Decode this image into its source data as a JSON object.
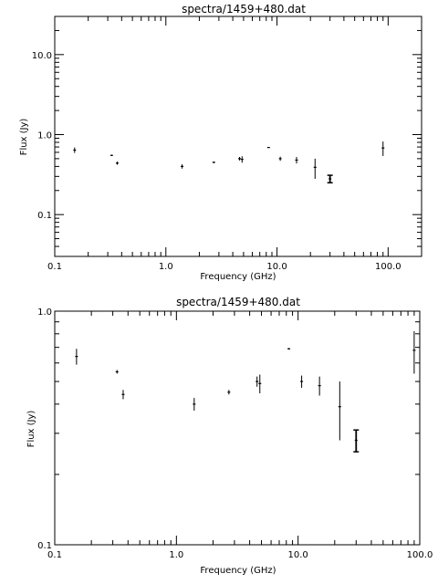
{
  "chart_data": [
    {
      "type": "scatter",
      "title": "spectra/1459+480.dat",
      "xlabel": "Frequency (GHz)",
      "ylabel": "Flux (Jy)",
      "x_scale": "log",
      "y_scale": "log",
      "xlim": [
        0.1,
        200
      ],
      "ylim": [
        0.03,
        30
      ],
      "x_ticks": [
        "0.1",
        "1.0",
        "10.0",
        "100.0"
      ],
      "y_ticks": [
        "0.1",
        "1.0",
        "10.0"
      ],
      "grid": false,
      "points": [
        {
          "x": 0.151,
          "y": 0.64,
          "err": 0.05
        },
        {
          "x": 0.325,
          "y": 0.55,
          "err": 0.01
        },
        {
          "x": 0.365,
          "y": 0.44,
          "err": 0.02
        },
        {
          "x": 1.4,
          "y": 0.4,
          "err": 0.025
        },
        {
          "x": 2.7,
          "y": 0.45,
          "err": 0.01
        },
        {
          "x": 4.6,
          "y": 0.5,
          "err": 0.025
        },
        {
          "x": 4.85,
          "y": 0.49,
          "err": 0.045
        },
        {
          "x": 8.4,
          "y": 0.69,
          "err": 0.005
        },
        {
          "x": 10.7,
          "y": 0.5,
          "err": 0.03
        },
        {
          "x": 15.0,
          "y": 0.48,
          "err": 0.045
        },
        {
          "x": 22.0,
          "y": 0.39,
          "err": 0.11
        },
        {
          "x": 30.0,
          "y": 0.28,
          "err": 0.03
        },
        {
          "x": 90.0,
          "y": 0.68,
          "err": 0.14
        }
      ]
    },
    {
      "type": "scatter",
      "title": "spectra/1459+480.dat",
      "xlabel": "Frequency (GHz)",
      "ylabel": "Flux (Jy)",
      "x_scale": "log",
      "y_scale": "log",
      "xlim": [
        0.1,
        100
      ],
      "ylim": [
        0.1,
        1.0
      ],
      "x_ticks": [
        "0.1",
        "1.0",
        "10.0",
        "100.0"
      ],
      "y_ticks": [
        "0.1",
        "1.0"
      ],
      "grid": false,
      "points": [
        {
          "x": 0.151,
          "y": 0.64,
          "err": 0.05
        },
        {
          "x": 0.325,
          "y": 0.55,
          "err": 0.01
        },
        {
          "x": 0.365,
          "y": 0.44,
          "err": 0.02
        },
        {
          "x": 1.4,
          "y": 0.4,
          "err": 0.025
        },
        {
          "x": 2.7,
          "y": 0.45,
          "err": 0.01
        },
        {
          "x": 4.6,
          "y": 0.5,
          "err": 0.025
        },
        {
          "x": 4.85,
          "y": 0.49,
          "err": 0.045
        },
        {
          "x": 8.4,
          "y": 0.69,
          "err": 0.005
        },
        {
          "x": 10.7,
          "y": 0.5,
          "err": 0.03
        },
        {
          "x": 15.0,
          "y": 0.48,
          "err": 0.045
        },
        {
          "x": 22.0,
          "y": 0.39,
          "err": 0.11
        },
        {
          "x": 30.0,
          "y": 0.28,
          "err": 0.03
        },
        {
          "x": 90.0,
          "y": 0.68,
          "err": 0.14
        }
      ]
    }
  ]
}
